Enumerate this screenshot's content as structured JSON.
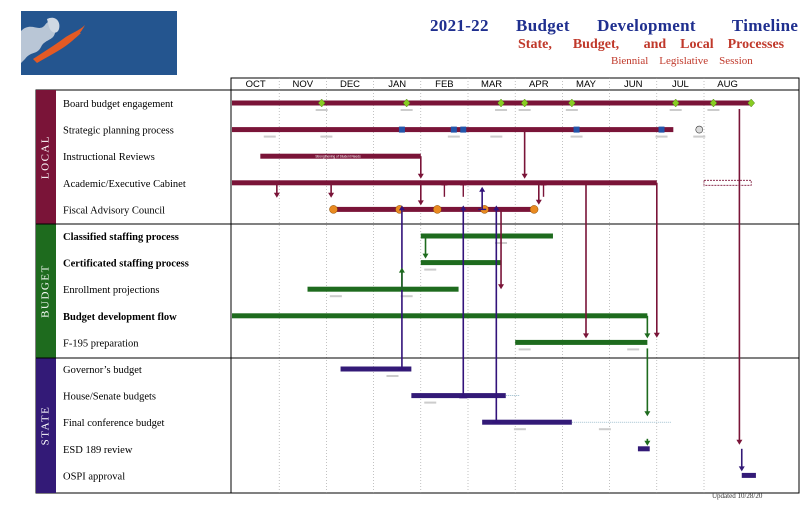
{
  "header": {
    "title": "2021-22      Budget      Development        Timeline",
    "subtitle": "State,      Budget,       and    Local    Processes",
    "subtitle2": "Biennial    Legislative    Session",
    "updated": "Updated      10/28/20"
  },
  "colors": {
    "local": "#7a1438",
    "budget": "#1e6b1e",
    "state": "#331a77",
    "arrow_local": "#7a1438",
    "arrow_blue": "#32127a",
    "milestone": "#88cc22",
    "node": "#e98a20",
    "square": "#2255aa"
  },
  "months": [
    "OCT",
    "NOV",
    "DEC",
    "JAN",
    "FEB",
    "MAR",
    "APR",
    "MAY",
    "JUN",
    "JUL",
    "AUG"
  ],
  "sections": [
    {
      "name": "LOCAL",
      "rows": [
        {
          "label": "Board budget  engagement",
          "bold": false
        },
        {
          "label": "Strategic planning process",
          "bold": false
        },
        {
          "label": "Instructional  Reviews",
          "bold": false
        },
        {
          "label": "Academic/Executive  Cabinet",
          "bold": false
        },
        {
          "label": "Fiscal Advisory Council",
          "bold": false
        }
      ]
    },
    {
      "name": "BUDGET",
      "rows": [
        {
          "label": "Classified staffing process",
          "bold": true
        },
        {
          "label": "Certificated staffing process",
          "bold": true
        },
        {
          "label": "Enrollment  projections",
          "bold": false
        },
        {
          "label": "Budget development flow",
          "bold": true
        },
        {
          "label": "F-195 preparation",
          "bold": false
        }
      ]
    },
    {
      "name": "STATE",
      "rows": [
        {
          "label": "Governor’s budget",
          "bold": false
        },
        {
          "label": "House/Senate   budgets",
          "bold": false
        },
        {
          "label": "Final conference budget",
          "bold": false
        },
        {
          "label": "ESD  189 review",
          "bold": false
        },
        {
          "label": "OSPI approval",
          "bold": false
        }
      ]
    }
  ],
  "bars": [
    {
      "row": 0,
      "start": 0,
      "end": 11,
      "color": "local"
    },
    {
      "row": 1,
      "start": 0,
      "end": 9.35,
      "color": "local"
    },
    {
      "row": 2,
      "start": 0.6,
      "end": 4.0,
      "color": "local",
      "text": "Strengthening of Student Needs"
    },
    {
      "row": 3,
      "start": 0,
      "end": 9.0,
      "color": "local"
    },
    {
      "row": 4,
      "start": 2.1,
      "end": 6.4,
      "color": "local"
    },
    {
      "row": 5,
      "start": 4.0,
      "end": 6.8,
      "color": "budget"
    },
    {
      "row": 6,
      "start": 4.0,
      "end": 5.7,
      "color": "budget"
    },
    {
      "row": 7,
      "start": 1.6,
      "end": 4.8,
      "color": "budget"
    },
    {
      "row": 8,
      "start": 0,
      "end": 8.8,
      "color": "budget"
    },
    {
      "row": 9,
      "start": 6.0,
      "end": 8.8,
      "color": "budget"
    },
    {
      "row": 10,
      "start": 2.3,
      "end": 3.8,
      "color": "state"
    },
    {
      "row": 11,
      "start": 3.8,
      "end": 5.8,
      "color": "state"
    },
    {
      "row": 12,
      "start": 5.3,
      "end": 7.2,
      "color": "state"
    },
    {
      "row": 13,
      "start": 8.6,
      "end": 8.85,
      "color": "state"
    },
    {
      "row": 14,
      "start": 10.8,
      "end": 11.1,
      "color": "state"
    }
  ],
  "down_arrows_local": [
    0.95,
    2.1,
    4.0,
    5.7,
    6.5,
    9.0,
    10.75
  ],
  "up_arrows_blue": [
    3.3,
    4.2,
    5.15,
    4.7
  ]
}
